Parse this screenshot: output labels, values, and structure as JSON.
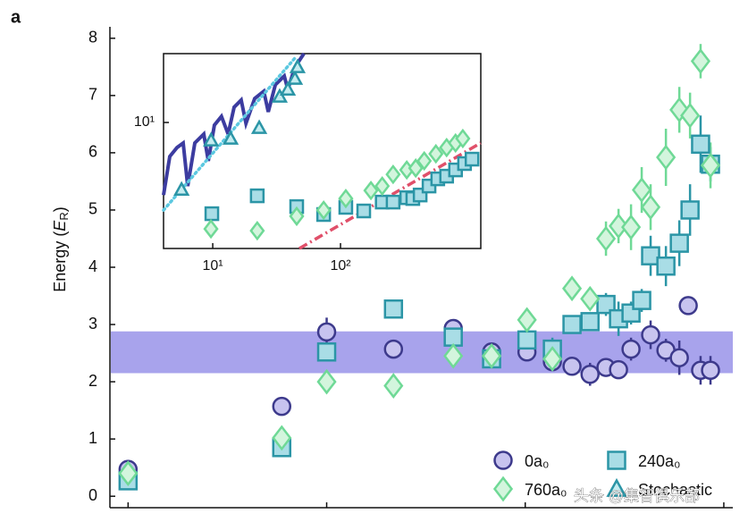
{
  "panel_label": "a",
  "watermark": "头条 @集智俱乐部",
  "chart_data": [
    {
      "type": "scatter",
      "y_label": [
        "Energy (",
        "E",
        "R",
        ")"
      ],
      "xscale": "log",
      "xlim": [
        0.81,
        1110
      ],
      "xticks": [
        1,
        10,
        100,
        1000
      ],
      "ylim": [
        -0.2,
        8.2
      ],
      "yticks": [
        0,
        1,
        2,
        3,
        4,
        5,
        6,
        7,
        8
      ],
      "band": [
        2.15,
        2.88
      ],
      "band_color": "#a8a3ec",
      "legend": "lower right",
      "series": [
        {
          "name": "0a₀",
          "marker": "circle",
          "color": "#3d3a8c",
          "fill": "#c7c3ef",
          "x": [
            1,
            5.94,
            10,
            21.7,
            43.4,
            67.7,
            102,
            137,
            172,
            212,
            255,
            295,
            341,
            428,
            511,
            597,
            662,
            764,
            857
          ],
          "values": [
            0.47,
            1.57,
            2.87,
            2.57,
            2.93,
            2.52,
            2.52,
            2.35,
            2.27,
            2.13,
            2.25,
            2.21,
            2.57,
            2.82,
            2.55,
            2.42,
            3.33,
            2.2,
            2.2
          ],
          "errors": [
            0.08,
            0.15,
            0.25,
            0.1,
            0.12,
            0.12,
            0.15,
            0.12,
            0.1,
            0.2,
            0.12,
            0.1,
            0.2,
            0.25,
            0.2,
            0.3,
            0.15,
            0.25,
            0.25
          ]
        },
        {
          "name": "240a₀",
          "marker": "square",
          "color": "#2b95a6",
          "fill": "#a9dde6",
          "x": [
            1,
            5.94,
            10,
            21.7,
            43.4,
            67.7,
            102,
            137,
            172,
            212,
            255,
            295,
            341,
            386,
            428,
            511,
            597,
            676,
            764,
            857
          ],
          "values": [
            0.27,
            0.85,
            2.52,
            3.27,
            2.78,
            2.4,
            2.73,
            2.57,
            3.0,
            3.05,
            3.35,
            3.1,
            3.2,
            3.42,
            4.2,
            4.02,
            4.42,
            5.0,
            6.15,
            5.8
          ],
          "errors": [
            0.1,
            0.08,
            0.15,
            0.15,
            0.15,
            0.15,
            0.15,
            0.2,
            0.12,
            0.15,
            0.2,
            0.3,
            0.2,
            0.2,
            0.35,
            0.35,
            0.4,
            0.45,
            0.5,
            0.3
          ]
        },
        {
          "name": "760a₀",
          "marker": "diamond",
          "color": "#6fd996",
          "fill": "#d3f5dd",
          "x": [
            1,
            5.94,
            10,
            21.7,
            43.4,
            67.7,
            102,
            137,
            172,
            212,
            255,
            295,
            341,
            386,
            428,
            511,
            597,
            676,
            764,
            857
          ],
          "values": [
            0.4,
            1.02,
            2.0,
            1.93,
            2.45,
            2.45,
            3.08,
            2.4,
            3.63,
            3.45,
            4.5,
            4.72,
            4.7,
            5.35,
            5.05,
            5.92,
            6.75,
            6.65,
            7.6,
            5.78
          ],
          "errors": [
            0.1,
            0.1,
            0.1,
            0.1,
            0.1,
            0.12,
            0.15,
            0.2,
            0.15,
            0.2,
            0.3,
            0.3,
            0.4,
            0.4,
            0.4,
            0.5,
            0.4,
            0.4,
            0.3,
            0.4
          ]
        }
      ]
    },
    {
      "type": "scatter",
      "inset": true,
      "xscale": "log",
      "yscale": "log",
      "xlim": [
        4.12,
        1253
      ],
      "xticks": [
        {
          "value": 10,
          "label": "10¹"
        },
        {
          "value": 100,
          "label": "10²"
        }
      ],
      "ylim": [
        1.15,
        32.6
      ],
      "yticks": [
        {
          "value": 10,
          "label": "10¹"
        }
      ],
      "series": [
        {
          "name": "Stochastic",
          "marker": "triangle",
          "color": "#2b95a6",
          "fill": "#c4ecf0",
          "x": [
            5.7,
            9.7,
            13.8,
            23.1,
            33.4,
            38.7,
            44.0,
            46.1
          ],
          "values": [
            3.16,
            7.36,
            7.59,
            9.12,
            15.6,
            17.6,
            21.2,
            25.9
          ]
        },
        {
          "marker": "square",
          "color": "#2b95a6",
          "fill": "#a9dde6",
          "x": [
            9.84,
            22.3,
            45.4,
            73.8,
            110,
            152,
            212,
            258,
            330,
            368,
            420,
            493,
            577,
            677,
            795,
            935,
            1070
          ],
          "values": [
            2.09,
            2.84,
            2.36,
            2.06,
            2.33,
            2.19,
            2.55,
            2.55,
            2.75,
            2.71,
            2.88,
            3.36,
            3.8,
            3.98,
            4.43,
            4.94,
            5.33
          ]
        },
        {
          "marker": "diamond",
          "color": "#6fd996",
          "fill": "#d3f5dd",
          "x": [
            9.68,
            22.3,
            45.4,
            73.8,
            110,
            173,
            212,
            258,
            330,
            388,
            452,
            558,
            677,
            795,
            906
          ],
          "values": [
            1.61,
            1.56,
            2.0,
            2.22,
            2.71,
            3.11,
            3.36,
            4.1,
            4.43,
            4.57,
            5.17,
            5.84,
            6.5,
            7.03,
            7.59
          ]
        },
        {
          "marker": "line",
          "color": "#3c3ca0",
          "dash": "solid",
          "x": [
            4.12,
            4.61,
            5.25,
            5.87,
            6.37,
            7.24,
            8.51,
            9.23,
            10.3,
            11.7,
            13.2,
            14.7,
            16.7,
            18.2,
            21.3,
            25.1,
            27.2,
            30.9,
            36.3,
            38.7,
            44.0,
            51.7
          ],
          "values": [
            2.88,
            5.58,
            6.5,
            7.03,
            3.36,
            7.03,
            8.19,
            5.17,
            9.55,
            11.1,
            8.19,
            13.0,
            14.7,
            9.85,
            15.1,
            17.1,
            12.0,
            19.1,
            22.2,
            17.6,
            25.9,
            32.6
          ]
        },
        {
          "marker": "line",
          "color": "#5bc8e0",
          "dash": "dot",
          "x": [
            4.12,
            44.0
          ],
          "values": [
            2.22,
            30.2
          ]
        },
        {
          "marker": "line",
          "color": "#e0506a",
          "dash": "dashdot",
          "x": [
            47.6,
            1250
          ],
          "values": [
            1.15,
            7.03
          ]
        }
      ]
    }
  ]
}
